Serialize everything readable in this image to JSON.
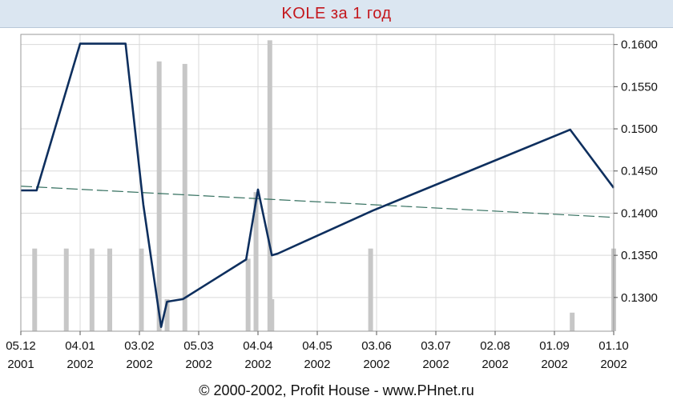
{
  "title": "KOLE за 1 год",
  "footer": "© 2000-2002, Profit House - www.PHnet.ru",
  "colors": {
    "title": "#c4161c",
    "price_line": "#0e2f5e",
    "trend_line": "#2e6b5a",
    "volume_bars": "#c7c7c7",
    "grid": "#d9d9d9",
    "frame": "#9a9a9a",
    "header_bg": "#dbe6f1"
  },
  "chart_data": {
    "type": "line",
    "title": "KOLE за 1 год",
    "x_range": [
      "2001-12-05",
      "2002-10-01"
    ],
    "ylim": [
      0.126,
      0.1612
    ],
    "y_axis_position": "right",
    "grid": true,
    "x_ticks": [
      {
        "date": "2001-12-05",
        "line1": "05.12",
        "line2": "2001"
      },
      {
        "date": "2002-01-04",
        "line1": "04.01",
        "line2": "2002"
      },
      {
        "date": "2002-02-03",
        "line1": "03.02",
        "line2": "2002"
      },
      {
        "date": "2002-03-05",
        "line1": "05.03",
        "line2": "2002"
      },
      {
        "date": "2002-04-04",
        "line1": "04.04",
        "line2": "2002"
      },
      {
        "date": "2002-05-04",
        "line1": "04.05",
        "line2": "2002"
      },
      {
        "date": "2002-06-03",
        "line1": "03.06",
        "line2": "2002"
      },
      {
        "date": "2002-07-03",
        "line1": "03.07",
        "line2": "2002"
      },
      {
        "date": "2002-08-02",
        "line1": "02.08",
        "line2": "2002"
      },
      {
        "date": "2002-09-01",
        "line1": "01.09",
        "line2": "2002"
      },
      {
        "date": "2002-10-01",
        "line1": "01.10",
        "line2": "2002"
      }
    ],
    "y_ticks": [
      "0.1300",
      "0.1350",
      "0.1400",
      "0.1450",
      "0.1500",
      "0.1550",
      "0.1600"
    ],
    "series": [
      {
        "kind": "price_line",
        "points": [
          [
            "2001-12-05",
            0.1427
          ],
          [
            "2001-12-13",
            0.1427
          ],
          [
            "2002-01-04",
            0.1601
          ],
          [
            "2002-01-27",
            0.1601
          ],
          [
            "2002-02-05",
            0.141
          ],
          [
            "2002-02-14",
            0.1265
          ],
          [
            "2002-02-17",
            0.1295
          ],
          [
            "2002-02-25",
            0.1298
          ],
          [
            "2002-03-29",
            0.1345
          ],
          [
            "2002-04-04",
            0.1428
          ],
          [
            "2002-04-11",
            0.135
          ],
          [
            "2002-04-14",
            0.1352
          ],
          [
            "2002-06-01",
            0.1403
          ],
          [
            "2002-09-09",
            0.1499
          ],
          [
            "2002-10-01",
            0.143
          ]
        ]
      },
      {
        "kind": "trend_line",
        "points": [
          [
            "2001-12-05",
            0.1432
          ],
          [
            "2002-10-01",
            0.1395
          ]
        ]
      },
      {
        "kind": "volume_bars",
        "bars": [
          [
            "2001-12-12",
            0.1358
          ],
          [
            "2001-12-28",
            0.1358
          ],
          [
            "2002-01-10",
            0.1358
          ],
          [
            "2002-01-19",
            0.1358
          ],
          [
            "2002-02-04",
            0.1358
          ],
          [
            "2002-02-13",
            0.158
          ],
          [
            "2002-02-17",
            0.1298
          ],
          [
            "2002-02-26",
            0.1577
          ],
          [
            "2002-03-30",
            0.1346
          ],
          [
            "2002-04-03",
            0.1425
          ],
          [
            "2002-04-10",
            0.1605
          ],
          [
            "2002-04-11",
            0.1298
          ],
          [
            "2002-05-31",
            0.1358
          ],
          [
            "2002-09-10",
            0.1282
          ],
          [
            "2002-10-01",
            0.1358
          ]
        ]
      }
    ]
  }
}
